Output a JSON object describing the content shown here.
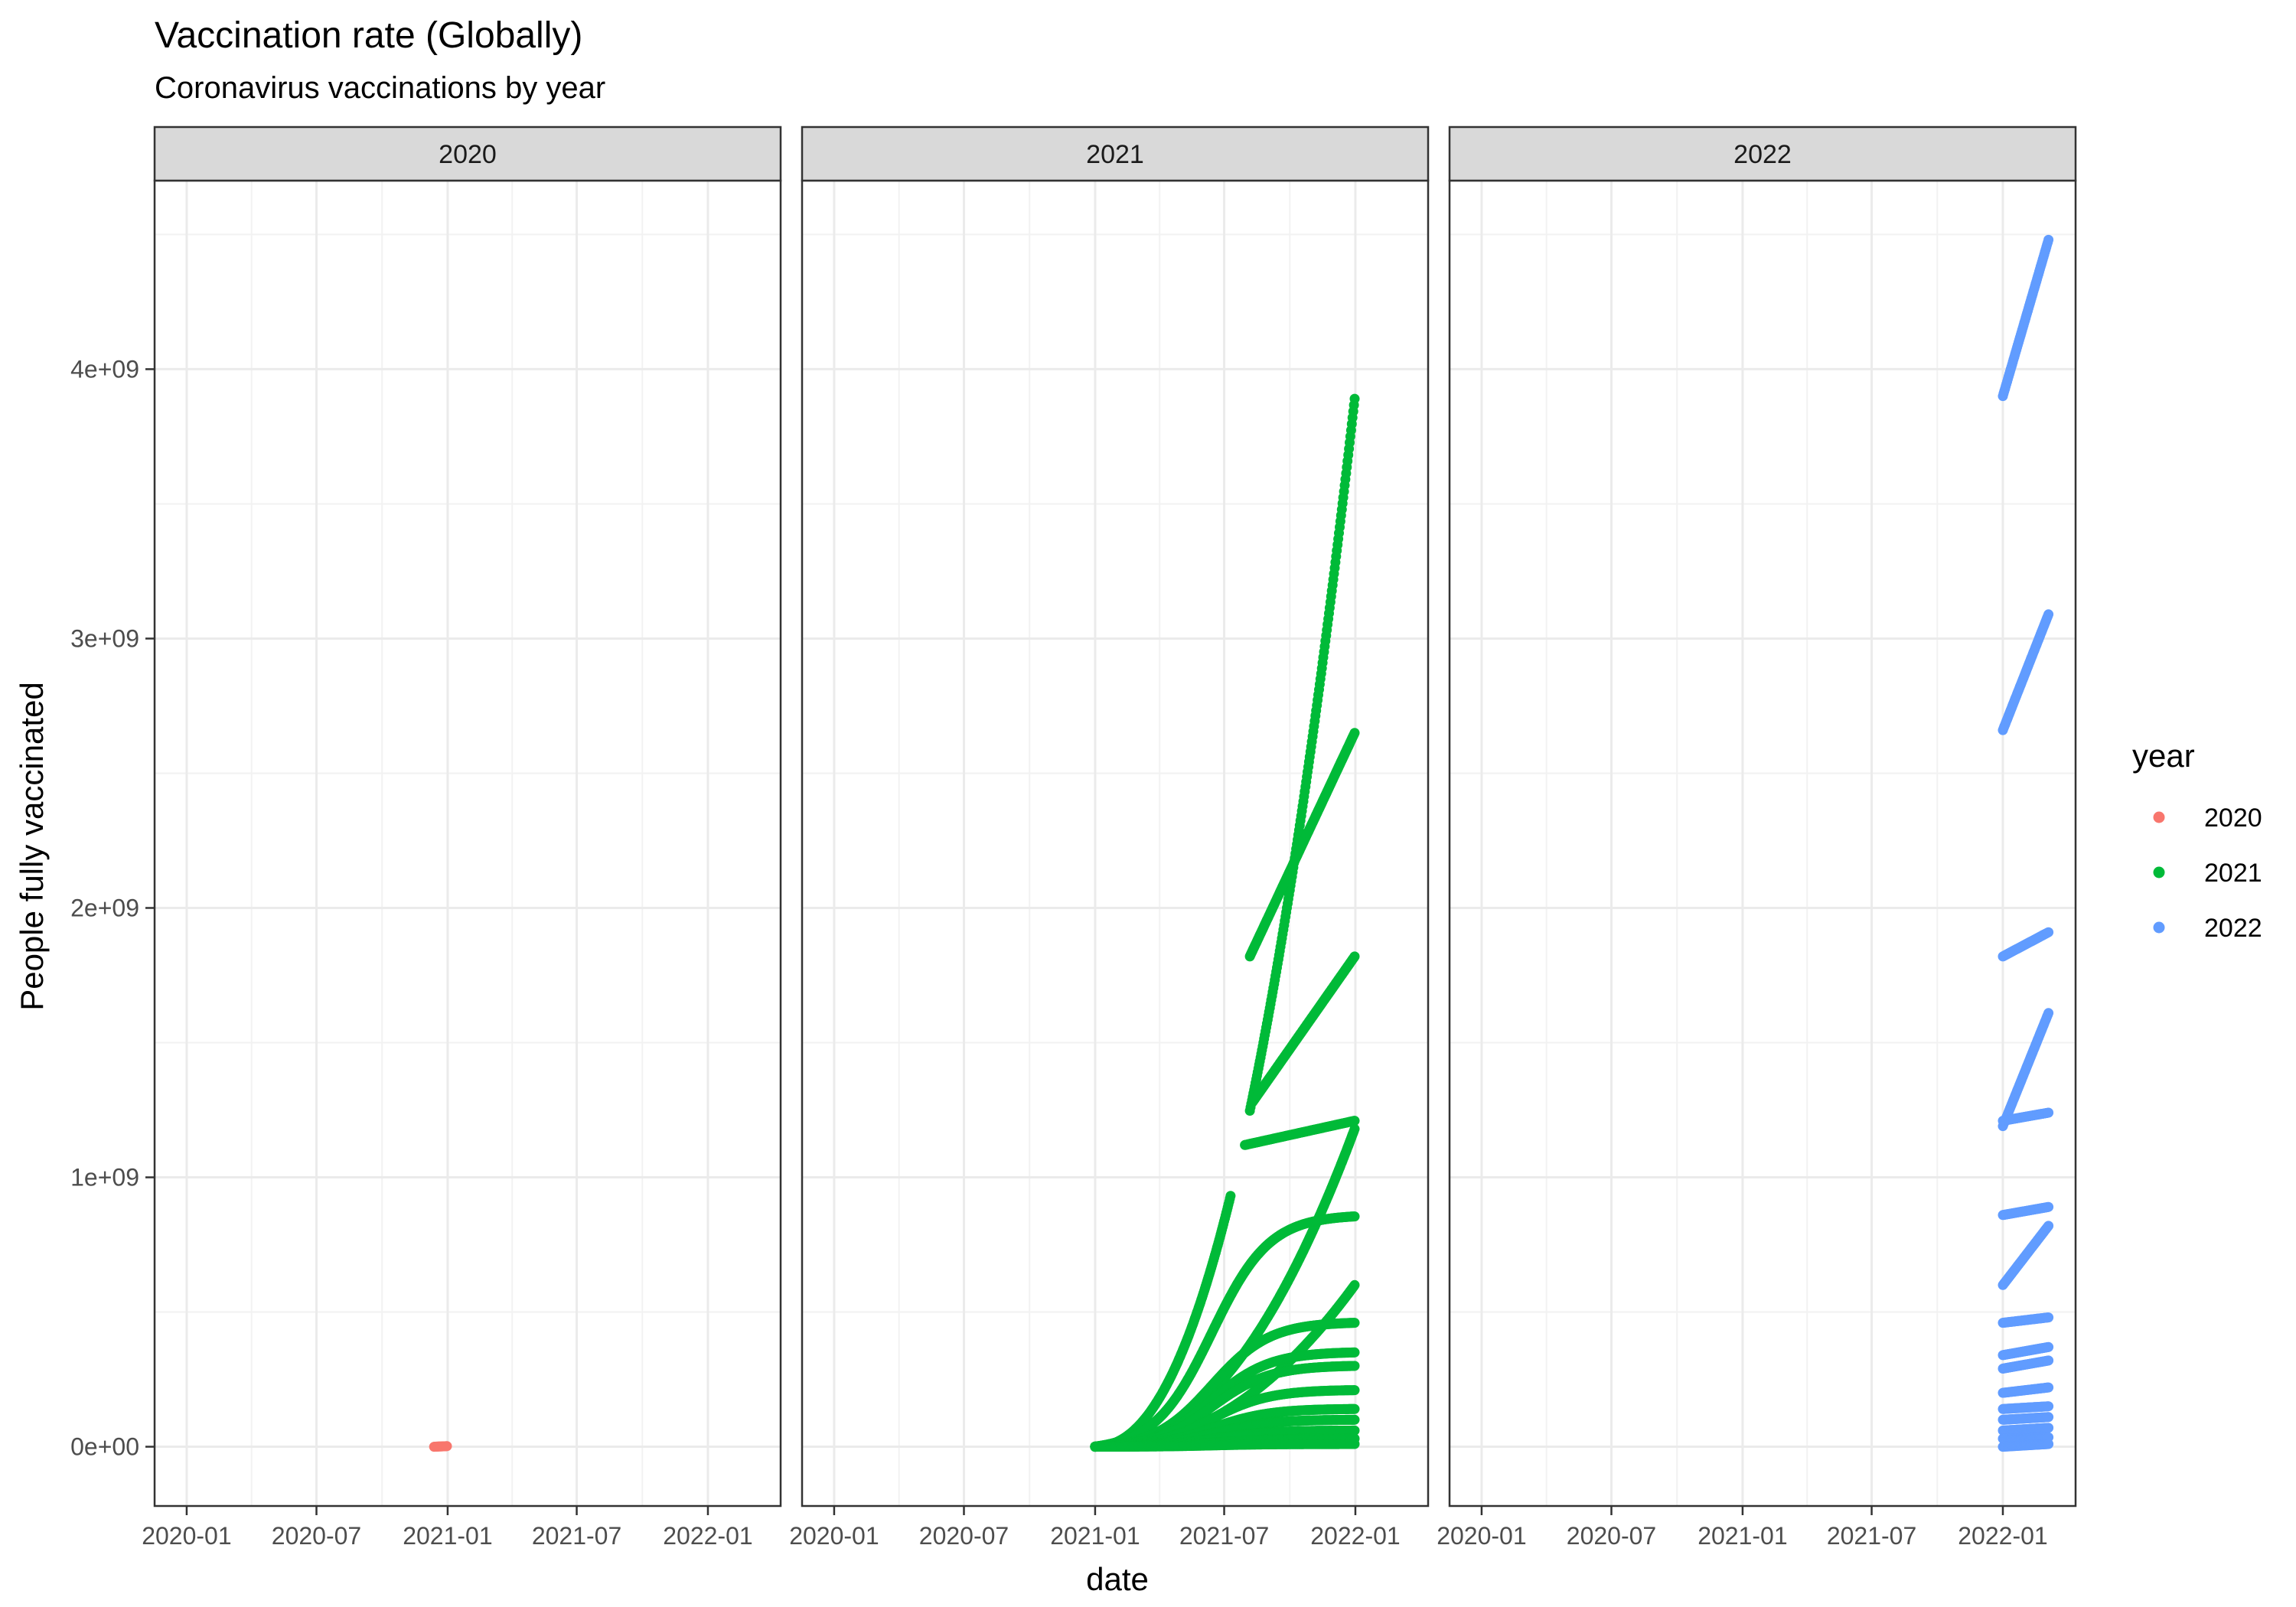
{
  "chart_data": {
    "type": "scatter",
    "title": "Vaccination rate (Globally)",
    "subtitle": "Coronavirus vaccinations by year",
    "xlabel": "date",
    "ylabel": "People fully vaccinated",
    "facet_labels": [
      "2020",
      "2021",
      "2022"
    ],
    "x_ticks": [
      "2020-01",
      "2020-07",
      "2021-01",
      "2021-07",
      "2022-01"
    ],
    "y_ticks": [
      "0e+00",
      "1e+09",
      "2e+09",
      "3e+09",
      "4e+09"
    ],
    "y_tick_values": [
      0,
      1000000000,
      2000000000,
      3000000000,
      4000000000
    ],
    "xlim": [
      "2019-11-17",
      "2022-04-13"
    ],
    "ylim": [
      -220000000,
      4700000000
    ],
    "grid": true,
    "theme": "bw",
    "legend": {
      "title": "year",
      "position": "right",
      "entries": [
        "2020",
        "2021",
        "2022"
      ]
    },
    "colors": {
      "2020": "#F8766D",
      "2021": "#00BA38",
      "2022": "#619CFF"
    },
    "series": [
      {
        "name": "2020",
        "facet": "2020",
        "curves": [
          {
            "x_start": "2020-12-13",
            "x_end": "2020-12-31",
            "y_start": 0,
            "y_end": 2000000
          }
        ]
      },
      {
        "name": "2021",
        "facet": "2021",
        "curves": [
          {
            "x_start": "2021-01-01",
            "x_end": "2021-12-31",
            "y_start": 1000000,
            "y_end": 3890000000,
            "shape": "scurve",
            "gaps": [
              [
                "2021-07-10",
                "2021-08-06"
              ]
            ]
          },
          {
            "x_start": "2021-08-06",
            "x_end": "2021-12-31",
            "y_start": 1820000000,
            "y_end": 2650000000,
            "shape": "linear"
          },
          {
            "x_start": "2021-08-10",
            "x_end": "2021-12-31",
            "y_start": 1280000000,
            "y_end": 1820000000,
            "shape": "linear"
          },
          {
            "x_start": "2021-07-30",
            "x_end": "2021-12-31",
            "y_start": 1120000000,
            "y_end": 1210000000,
            "shape": "linear"
          },
          {
            "x_start": "2021-01-01",
            "x_end": "2021-12-31",
            "y_start": 500000,
            "y_end": 1180000000,
            "shape": "scurve"
          },
          {
            "x_start": "2021-01-01",
            "x_end": "2021-12-31",
            "y_start": 500000,
            "y_end": 855000000,
            "shape": "logistic"
          },
          {
            "x_start": "2021-01-01",
            "x_end": "2021-12-31",
            "y_start": 300000,
            "y_end": 600000000,
            "shape": "scurve"
          },
          {
            "x_start": "2021-01-01",
            "x_end": "2021-12-31",
            "y_start": 300000,
            "y_end": 460000000,
            "shape": "logistic"
          },
          {
            "x_start": "2021-01-01",
            "x_end": "2021-12-31",
            "y_start": 200000,
            "y_end": 350000000,
            "shape": "logistic"
          },
          {
            "x_start": "2021-01-01",
            "x_end": "2021-12-31",
            "y_start": 200000,
            "y_end": 300000000,
            "shape": "logistic"
          },
          {
            "x_start": "2021-01-01",
            "x_end": "2021-12-31",
            "y_start": 100000,
            "y_end": 210000000,
            "shape": "logistic"
          },
          {
            "x_start": "2021-01-01",
            "x_end": "2021-12-31",
            "y_start": 100000,
            "y_end": 140000000,
            "shape": "logistic"
          },
          {
            "x_start": "2021-01-01",
            "x_end": "2021-12-31",
            "y_start": 0,
            "y_end": 100000000,
            "shape": "logistic"
          },
          {
            "x_start": "2021-01-01",
            "x_end": "2021-12-31",
            "y_start": 0,
            "y_end": 60000000,
            "shape": "logistic"
          },
          {
            "x_start": "2021-01-01",
            "x_end": "2021-12-31",
            "y_start": 0,
            "y_end": 30000000,
            "shape": "logistic"
          },
          {
            "x_start": "2021-01-01",
            "x_end": "2021-12-31",
            "y_start": 0,
            "y_end": 10000000,
            "shape": "logistic"
          }
        ]
      },
      {
        "name": "2022",
        "facet": "2022",
        "curves": [
          {
            "x_start": "2022-01-01",
            "x_end": "2022-03-06",
            "y_start": 3900000000,
            "y_end": 4480000000
          },
          {
            "x_start": "2022-01-01",
            "x_end": "2022-03-06",
            "y_start": 2660000000,
            "y_end": 3090000000
          },
          {
            "x_start": "2022-01-01",
            "x_end": "2022-03-06",
            "y_start": 1820000000,
            "y_end": 1910000000
          },
          {
            "x_start": "2022-01-01",
            "x_end": "2022-03-06",
            "y_start": 1190000000,
            "y_end": 1610000000
          },
          {
            "x_start": "2022-01-01",
            "x_end": "2022-03-06",
            "y_start": 1210000000,
            "y_end": 1240000000
          },
          {
            "x_start": "2022-01-01",
            "x_end": "2022-03-06",
            "y_start": 860000000,
            "y_end": 890000000
          },
          {
            "x_start": "2022-01-01",
            "x_end": "2022-03-06",
            "y_start": 600000000,
            "y_end": 820000000
          },
          {
            "x_start": "2022-01-01",
            "x_end": "2022-03-06",
            "y_start": 460000000,
            "y_end": 480000000
          },
          {
            "x_start": "2022-01-01",
            "x_end": "2022-03-06",
            "y_start": 340000000,
            "y_end": 370000000
          },
          {
            "x_start": "2022-01-01",
            "x_end": "2022-03-06",
            "y_start": 290000000,
            "y_end": 320000000
          },
          {
            "x_start": "2022-01-01",
            "x_end": "2022-03-06",
            "y_start": 200000000,
            "y_end": 220000000
          },
          {
            "x_start": "2022-01-01",
            "x_end": "2022-03-06",
            "y_start": 140000000,
            "y_end": 150000000
          },
          {
            "x_start": "2022-01-01",
            "x_end": "2022-03-06",
            "y_start": 100000000,
            "y_end": 110000000
          },
          {
            "x_start": "2022-01-01",
            "x_end": "2022-03-06",
            "y_start": 60000000,
            "y_end": 70000000
          },
          {
            "x_start": "2022-01-01",
            "x_end": "2022-03-06",
            "y_start": 30000000,
            "y_end": 35000000
          },
          {
            "x_start": "2022-01-01",
            "x_end": "2022-03-06",
            "y_start": 0,
            "y_end": 10000000
          }
        ]
      }
    ]
  }
}
